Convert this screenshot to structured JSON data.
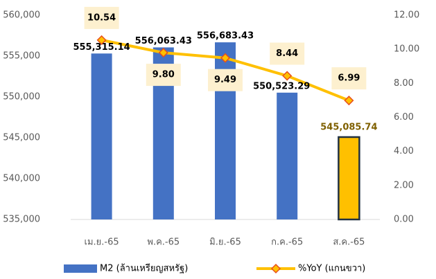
{
  "chart_data": {
    "type": "bar_line",
    "categories": [
      "เม.ย.-65",
      "พ.ค.-65",
      "มิ.ย.-65",
      "ก.ค.-65",
      "ส.ค.-65"
    ],
    "series": [
      {
        "name": "M2 (ล้านเหรียญสหรัฐ)",
        "type": "bar",
        "color": "#4472c4",
        "colors": [
          "#4472c4",
          "#4472c4",
          "#4472c4",
          "#4472c4",
          "#ffc000"
        ],
        "edgecolors": [
          null,
          null,
          null,
          null,
          "#203040"
        ],
        "label_colors": [
          "#000000",
          "#000000",
          "#000000",
          "#000000",
          "#7f6000"
        ],
        "values": [
          555315.14,
          556063.43,
          556683.43,
          550523.29,
          545085.74
        ],
        "value_labels": [
          "555,315.14",
          "556,063.43",
          "556,683.43",
          "550,523.29",
          "545,085.74"
        ]
      },
      {
        "name": "%YoY (แกนขวา)",
        "type": "line",
        "axis": "y2",
        "color": "#ffc000",
        "marker_edge": "#e8501c",
        "values": [
          10.54,
          9.8,
          9.49,
          8.44,
          6.99
        ],
        "value_labels": [
          "10.54",
          "9.80",
          "9.49",
          "8.44",
          "6.99"
        ]
      }
    ],
    "ylim": [
      535000,
      560000
    ],
    "yticks": [
      {
        "value": 535000,
        "label": "535,000"
      },
      {
        "value": 540000,
        "label": "540,000"
      },
      {
        "value": 545000,
        "label": "545,000"
      },
      {
        "value": 550000,
        "label": "550,000"
      },
      {
        "value": 555000,
        "label": "555,000"
      },
      {
        "value": 560000,
        "label": "560,000"
      }
    ],
    "y2lim": [
      0,
      12
    ],
    "y2ticks": [
      {
        "value": 0,
        "label": "0.00"
      },
      {
        "value": 2,
        "label": "2.00"
      },
      {
        "value": 4,
        "label": "4.00"
      },
      {
        "value": 6,
        "label": "6.00"
      },
      {
        "value": 8,
        "label": "8.00"
      },
      {
        "value": 10,
        "label": "10.00"
      },
      {
        "value": 12,
        "label": "12.00"
      }
    ],
    "grid": false
  }
}
